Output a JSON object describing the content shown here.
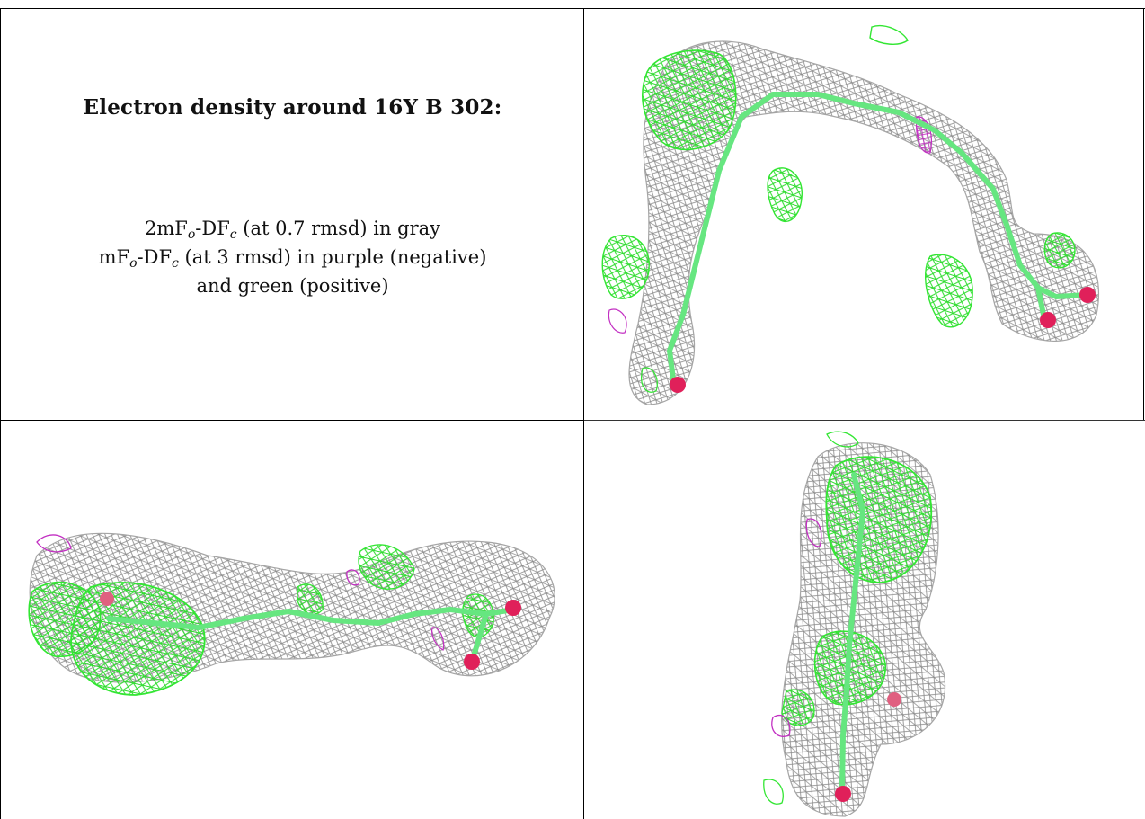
{
  "title": "Electron density around 16Y B 302:",
  "legend": {
    "line1": {
      "pre": "2mF",
      "s1": "o",
      "mid": "-DF",
      "s2": "c",
      "post": " (at 0.7 rmsd) in gray"
    },
    "line2": {
      "pre": "mF",
      "s1": "o",
      "mid": "-DF",
      "s2": "c",
      "post": " (at 3 rmsd) in purple (negative)"
    },
    "line3": "and green (positive)"
  },
  "colors": {
    "map_2fofc": "#9a9a9a",
    "map_fofc_positive": "#33e633",
    "map_fofc_negative": "#cc33cc",
    "ligand_carbon": "#66e680",
    "ligand_oxygen": "#e0205a"
  },
  "panels": [
    "view-1",
    "view-2",
    "view-3"
  ]
}
